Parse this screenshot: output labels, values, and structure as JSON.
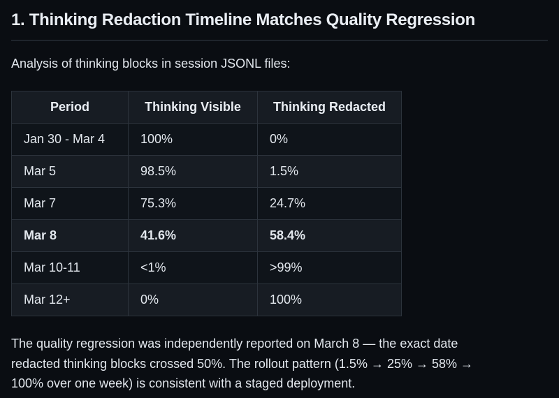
{
  "doc": {
    "heading": "1. Thinking Redaction Timeline Matches Quality Regression",
    "intro": "Analysis of thinking blocks in session JSONL files:",
    "conclusion": "The quality regression was independently reported on March 8 — the exact date redacted thinking blocks crossed 50%. The rollout pattern (1.5% → 25% → 58% → 100% over one week) is consistent with a staged deployment."
  },
  "table": {
    "columns": [
      "Period",
      "Thinking Visible",
      "Thinking Redacted"
    ],
    "rows": [
      {
        "period": "Jan 30 - Mar 4",
        "visible": "100%",
        "redacted": "0%",
        "bold": false
      },
      {
        "period": "Mar 5",
        "visible": "98.5%",
        "redacted": "1.5%",
        "bold": false
      },
      {
        "period": "Mar 7",
        "visible": "75.3%",
        "redacted": "24.7%",
        "bold": false
      },
      {
        "period": "Mar 8",
        "visible": "41.6%",
        "redacted": "58.4%",
        "bold": true
      },
      {
        "period": "Mar 10-11",
        "visible": "<1%",
        "redacted": ">99%",
        "bold": false
      },
      {
        "period": "Mar 12+",
        "visible": "0%",
        "redacted": "100%",
        "bold": false
      }
    ]
  },
  "colors": {
    "background": "#0a0d12",
    "row_default": "#0f141a",
    "row_alternate": "#171c23",
    "header_background": "#171c23",
    "border": "#2c333c",
    "heading_rule": "#343b45",
    "text": "#e2e7ed",
    "heading_text": "#e9edf3"
  }
}
